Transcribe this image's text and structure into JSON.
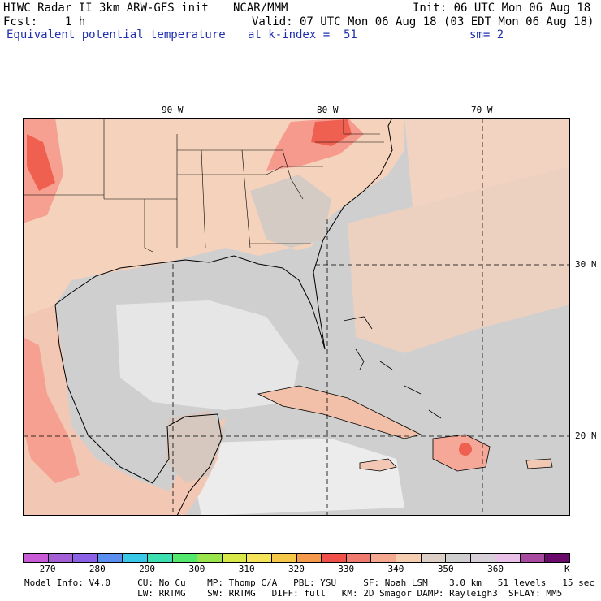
{
  "header": {
    "line1_left": "HIWC Radar II 3km ARW-GFS init",
    "line1_mid": "NCAR/MMM",
    "line1_right": "Init: 06 UTC Mon 06 Aug 18",
    "line2_left": "Fcst:    1 h",
    "line2_right": "Valid: 07 UTC Mon 06 Aug 18 (03 EDT Mon 06 Aug 18)",
    "line3_left": "Equivalent potential temperature",
    "line3_mid": "at k-index =  51",
    "line3_right": "sm= 2"
  },
  "map": {
    "lon_labels": [
      "90 W",
      "80 W",
      "70 W"
    ],
    "lat_labels": [
      "30 N",
      "20 N"
    ],
    "colors": {
      "warm_land": "#f5d2bc",
      "hot": "#f59c8c",
      "hottest": "#f05a4e",
      "grey": "#cfcfcf",
      "light_grey": "#e8e8e8",
      "coast": "#000000"
    }
  },
  "colorbar": {
    "colors": [
      "#c95cd6",
      "#a45ed6",
      "#8b62e6",
      "#5a8ff0",
      "#38c8e8",
      "#3ce0b0",
      "#54e86e",
      "#9ae44c",
      "#d8e848",
      "#f5e35a",
      "#f5c84a",
      "#f59a4c",
      "#f0504a",
      "#f07a6e",
      "#f5a890",
      "#f5cdb0",
      "#dcd0c6",
      "#cfcfcf",
      "#d8d0d8",
      "#e8c0e8",
      "#a84aa0",
      "#6a0a6a"
    ],
    "ticks": [
      "270",
      "280",
      "290",
      "300",
      "310",
      "320",
      "330",
      "340",
      "350",
      "360"
    ],
    "unit": "K"
  },
  "footer": {
    "line1": "Model Info: V4.0     CU: No Cu    MP: Thomp C/A   PBL: YSU     SF: Noah LSM    3.0 km   51 levels   15 sec",
    "line2": "                     LW: RRTMG    SW: RRTMG   DIFF: full   KM: 2D Smagor DAMP: Rayleigh3  SFLAY: MM5"
  }
}
